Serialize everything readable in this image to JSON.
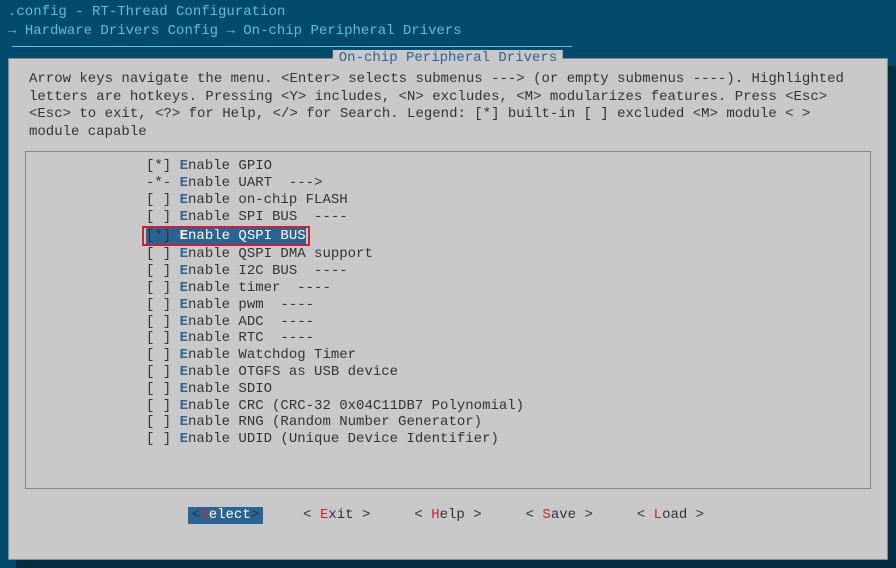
{
  "titlebar": ".config - RT-Thread Configuration",
  "breadcrumb": {
    "arrow": "→ ",
    "path1": "Hardware Drivers Config",
    "sep": " → ",
    "path2": "On-chip Peripheral Drivers"
  },
  "dialog": {
    "title": " On-chip Peripheral Drivers ",
    "help": "Arrow keys navigate the menu.  <Enter> selects submenus ---> (or empty submenus ----).  Highlighted letters are hotkeys.  Pressing <Y> includes, <N> excludes, <M> modularizes features.  Press <Esc><Esc> to exit, <?> for Help, </> for Search.  Legend: [*] built-in  [ ] excluded  <M> module  < > module capable"
  },
  "items": [
    {
      "prefix": "[*] ",
      "hot": "E",
      "rest": "nable GPIO",
      "sel": false
    },
    {
      "prefix": "-*- ",
      "hot": "E",
      "rest": "nable UART  --->",
      "sel": false
    },
    {
      "prefix": "[ ] ",
      "hot": "E",
      "rest": "nable on-chip FLASH",
      "sel": false
    },
    {
      "prefix": "[ ] ",
      "hot": "E",
      "rest": "nable SPI BUS  ----",
      "sel": false
    },
    {
      "prefix": "[*] ",
      "hot": "E",
      "rest": "nable QSPI BUS",
      "sel": true
    },
    {
      "prefix": "[ ] ",
      "hot": "E",
      "rest": "nable QSPI DMA support",
      "sel": false
    },
    {
      "prefix": "[ ] ",
      "hot": "E",
      "rest": "nable I2C BUS  ----",
      "sel": false
    },
    {
      "prefix": "[ ] ",
      "hot": "E",
      "rest": "nable timer  ----",
      "sel": false
    },
    {
      "prefix": "[ ] ",
      "hot": "E",
      "rest": "nable pwm  ----",
      "sel": false
    },
    {
      "prefix": "[ ] ",
      "hot": "E",
      "rest": "nable ADC  ----",
      "sel": false
    },
    {
      "prefix": "[ ] ",
      "hot": "E",
      "rest": "nable RTC  ----",
      "sel": false
    },
    {
      "prefix": "[ ] ",
      "hot": "E",
      "rest": "nable Watchdog Timer",
      "sel": false
    },
    {
      "prefix": "[ ] ",
      "hot": "E",
      "rest": "nable OTGFS as USB device",
      "sel": false
    },
    {
      "prefix": "[ ] ",
      "hot": "E",
      "rest": "nable SDIO",
      "sel": false
    },
    {
      "prefix": "[ ] ",
      "hot": "E",
      "rest": "nable CRC (CRC-32 0x04C11DB7 Polynomial)",
      "sel": false
    },
    {
      "prefix": "[ ] ",
      "hot": "E",
      "rest": "nable RNG (Random Number Generator)",
      "sel": false
    },
    {
      "prefix": "[ ] ",
      "hot": "E",
      "rest": "nable UDID (Unique Device Identifier)",
      "sel": false
    }
  ],
  "buttons": [
    {
      "open": "<",
      "hot": "S",
      "rest": "elect",
      "close": ">",
      "active": true
    },
    {
      "open": "< ",
      "hot": "E",
      "rest": "xit ",
      "close": ">",
      "active": false
    },
    {
      "open": "< ",
      "hot": "H",
      "rest": "elp ",
      "close": ">",
      "active": false
    },
    {
      "open": "< ",
      "hot": "S",
      "rest": "ave ",
      "close": ">",
      "active": false
    },
    {
      "open": "< ",
      "hot": "L",
      "rest": "oad ",
      "close": ">",
      "active": false
    }
  ],
  "colors": {
    "bg": "#024a6b",
    "dialog_bg": "#c8c8c8",
    "accent_blue": "#2a6496",
    "cyan": "#5bc0de",
    "hotkey_red": "#c23",
    "shadow": "#012d40"
  }
}
